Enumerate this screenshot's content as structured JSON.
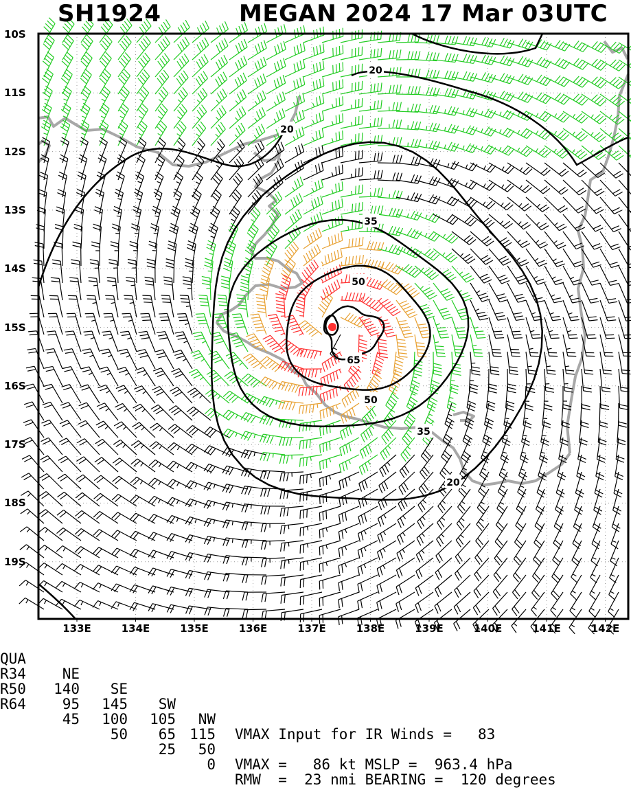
{
  "title": {
    "left": "SH1924",
    "right": "MEGAN 2024 17 Mar 03UTC"
  },
  "map": {
    "lat_labels": [
      "10S",
      "11S",
      "12S",
      "13S",
      "14S",
      "15S",
      "16S",
      "17S",
      "18S",
      "19S"
    ],
    "lon_labels": [
      "133E",
      "134E",
      "135E",
      "136E",
      "137E",
      "138E",
      "139E",
      "140E",
      "141E",
      "142E"
    ],
    "contour_labels": [
      "20",
      "20",
      "20",
      "35",
      "35",
      "50",
      "50",
      "65"
    ],
    "storm_center": {
      "lat": -15.0,
      "lon": 137.4,
      "color": "#ff3030"
    },
    "colors": {
      "coast": "#a8a8a8",
      "wind_lt35": "#000000",
      "wind_35_50": "#22cc22",
      "wind_50_64": "#e8a030",
      "wind_64_plus": "#e06030",
      "wind_core": "#ff3030"
    }
  },
  "info": {
    "header": {
      "label": "QUA",
      "cols": [
        "NE",
        "SE",
        "SW",
        "NW"
      ],
      "text": "VMAX Input for IR Winds =   83"
    },
    "r34": {
      "label": "R34",
      "cols": [
        "140",
        "145",
        "105",
        "115"
      ]
    },
    "r50": {
      "label": "R50",
      "cols": [
        "95",
        "100",
        "65",
        "50"
      ],
      "text": "VMAX =   86 kt MSLP =  963.4 hPa"
    },
    "r64": {
      "label": "R64",
      "cols": [
        "45",
        "50",
        "25",
        "0"
      ],
      "text": "RMW  =  23 nmi BEARING =  120 degrees"
    }
  }
}
